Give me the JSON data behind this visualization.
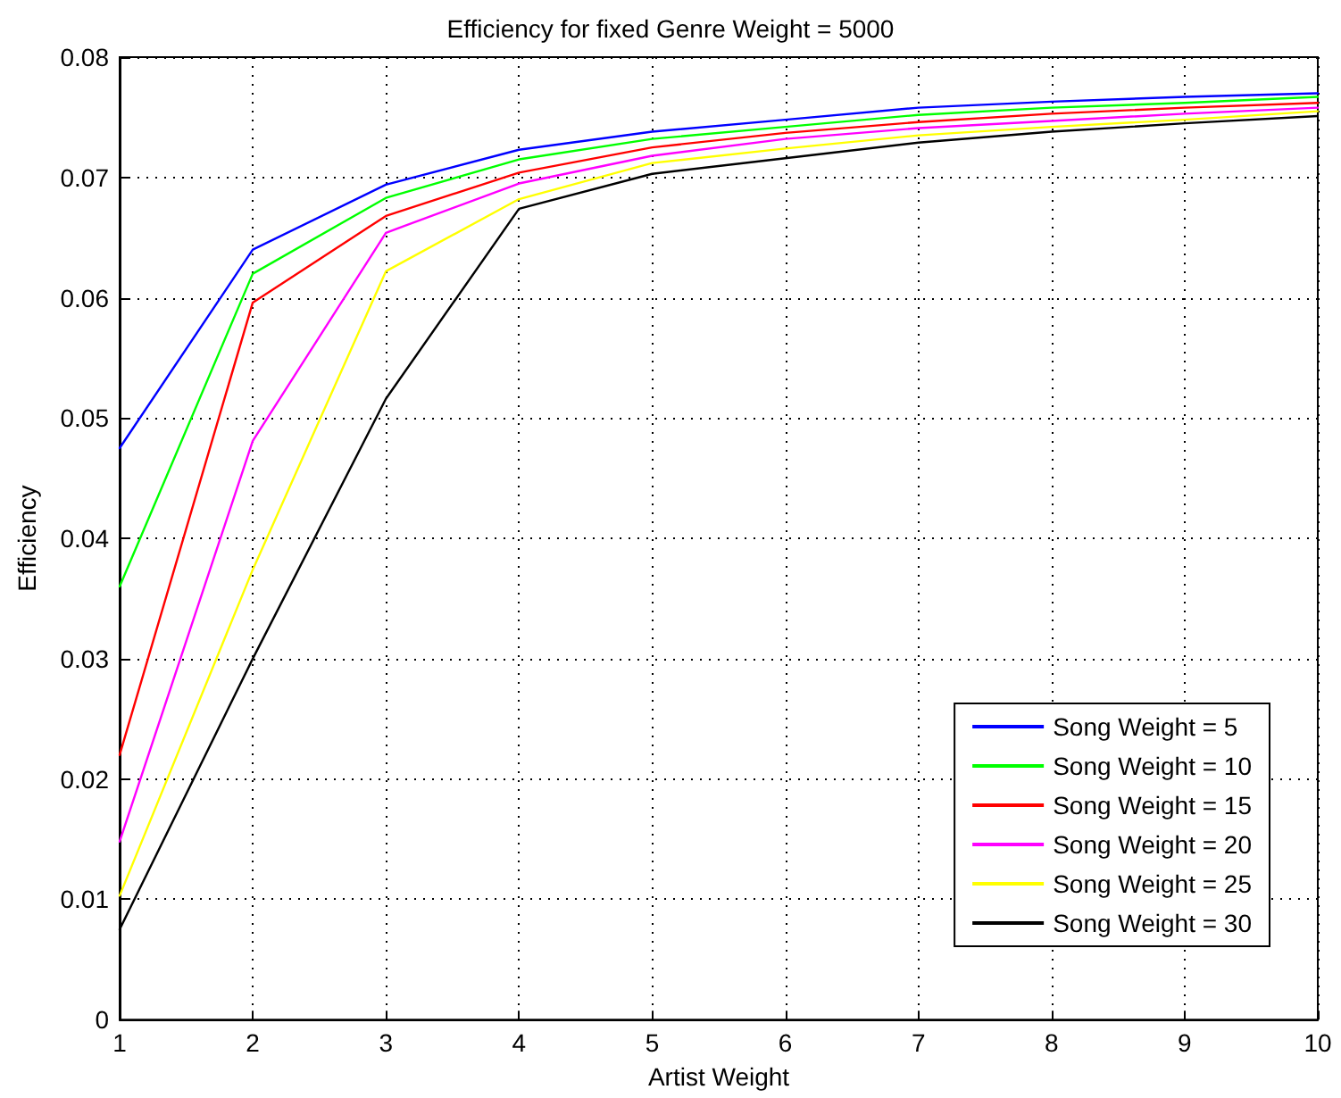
{
  "chart_data": {
    "type": "line",
    "title": "Efficiency for fixed Genre Weight = 5000",
    "xlabel": "Artist Weight",
    "ylabel": "Efficiency",
    "x": [
      1,
      2,
      3,
      4,
      5,
      6,
      7,
      8,
      9,
      10
    ],
    "series": [
      {
        "name": "Song Weight = 5",
        "color": "#0000ff",
        "values": [
          0.0475,
          0.064,
          0.0694,
          0.0723,
          0.0738,
          0.0748,
          0.0758,
          0.0763,
          0.0767,
          0.077
        ]
      },
      {
        "name": "Song Weight = 10",
        "color": "#00ff00",
        "values": [
          0.036,
          0.062,
          0.0683,
          0.0715,
          0.0732,
          0.0742,
          0.0752,
          0.0758,
          0.0762,
          0.0767
        ]
      },
      {
        "name": "Song Weight = 15",
        "color": "#ff0000",
        "values": [
          0.022,
          0.0596,
          0.0668,
          0.0704,
          0.0725,
          0.0737,
          0.0746,
          0.0753,
          0.0758,
          0.0762
        ]
      },
      {
        "name": "Song Weight = 20",
        "color": "#ff00ff",
        "values": [
          0.0148,
          0.0481,
          0.0654,
          0.0695,
          0.0718,
          0.0732,
          0.0741,
          0.0747,
          0.0753,
          0.0758
        ]
      },
      {
        "name": "Song Weight = 25",
        "color": "#ffff00",
        "values": [
          0.0103,
          0.0374,
          0.0622,
          0.0682,
          0.0712,
          0.0724,
          0.0735,
          0.0742,
          0.0748,
          0.0755
        ]
      },
      {
        "name": "Song Weight = 30",
        "color": "#000000",
        "values": [
          0.0075,
          0.03,
          0.0516,
          0.0674,
          0.0703,
          0.0716,
          0.0729,
          0.0738,
          0.0745,
          0.0751
        ]
      }
    ],
    "xlim": [
      1,
      10
    ],
    "xticks": [
      1,
      2,
      3,
      4,
      5,
      6,
      7,
      8,
      9,
      10
    ],
    "ylim": [
      0,
      0.08
    ],
    "yticks": [
      0,
      0.01,
      0.02,
      0.03,
      0.04,
      0.05,
      0.06,
      0.07,
      0.08
    ],
    "grid": true,
    "legend": "bottom right",
    "marker": "none",
    "line_style": "solid"
  }
}
